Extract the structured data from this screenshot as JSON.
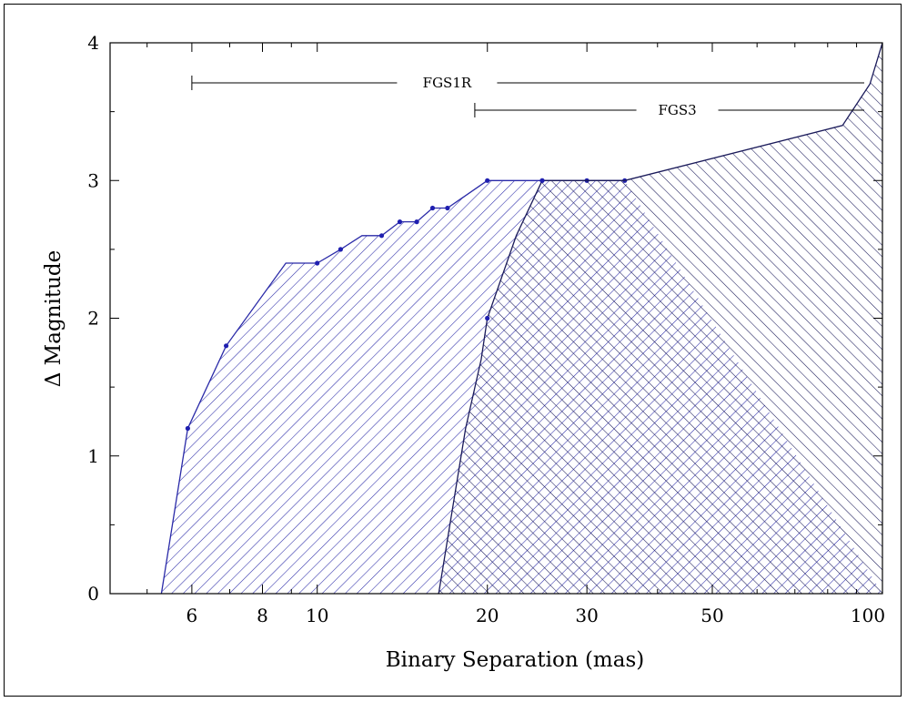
{
  "chart_data": {
    "type": "area",
    "xlabel": "Binary Separation (mas)",
    "ylabel": "Δ Magnitude",
    "xscale": "log",
    "xlim": [
      4.3,
      100
    ],
    "ylim": [
      0,
      4
    ],
    "xticks": [
      {
        "value": 6,
        "label": "6"
      },
      {
        "value": 8,
        "label": "8"
      },
      {
        "value": 10,
        "label": "10"
      },
      {
        "value": 20,
        "label": "20"
      },
      {
        "value": 30,
        "label": "30"
      },
      {
        "value": 50,
        "label": "50"
      },
      {
        "value": 100,
        "label": "100"
      }
    ],
    "yticks": [
      {
        "value": 0,
        "label": "0"
      },
      {
        "value": 1,
        "label": "1"
      },
      {
        "value": 2,
        "label": "2"
      },
      {
        "value": 3,
        "label": "3"
      },
      {
        "value": 4,
        "label": "4"
      }
    ],
    "grid": false,
    "series": [
      {
        "name": "FGS1R",
        "fill": "hatch-single",
        "color": "#2a2aa8",
        "curve": [
          {
            "x": 5.3,
            "y": 0
          },
          {
            "x": 5.9,
            "y": 1.2
          },
          {
            "x": 6.9,
            "y": 1.8
          },
          {
            "x": 8.8,
            "y": 2.4
          },
          {
            "x": 10,
            "y": 2.4
          },
          {
            "x": 11,
            "y": 2.5
          },
          {
            "x": 12,
            "y": 2.6
          },
          {
            "x": 13,
            "y": 2.6
          },
          {
            "x": 14,
            "y": 2.7
          },
          {
            "x": 15,
            "y": 2.7
          },
          {
            "x": 16,
            "y": 2.8
          },
          {
            "x": 17,
            "y": 2.8
          },
          {
            "x": 20,
            "y": 3.0
          },
          {
            "x": 25,
            "y": 3.0
          },
          {
            "x": 30,
            "y": 3.0
          },
          {
            "x": 35,
            "y": 3.0
          }
        ],
        "markers": [
          {
            "x": 5.9,
            "y": 1.2
          },
          {
            "x": 6.9,
            "y": 1.8
          },
          {
            "x": 10,
            "y": 2.4
          },
          {
            "x": 11,
            "y": 2.5
          },
          {
            "x": 13,
            "y": 2.6
          },
          {
            "x": 14,
            "y": 2.7
          },
          {
            "x": 15,
            "y": 2.7
          },
          {
            "x": 16,
            "y": 2.8
          },
          {
            "x": 17,
            "y": 2.8
          },
          {
            "x": 20,
            "y": 3.0
          },
          {
            "x": 25,
            "y": 3.0
          },
          {
            "x": 30,
            "y": 3.0
          },
          {
            "x": 35,
            "y": 3.0
          }
        ]
      },
      {
        "name": "FGS3",
        "fill": "hatch-cross",
        "color": "#1a1a5a",
        "curve": [
          {
            "x": 16.4,
            "y": 0
          },
          {
            "x": 18.3,
            "y": 1.2
          },
          {
            "x": 19.5,
            "y": 1.7
          },
          {
            "x": 20.0,
            "y": 2.0
          },
          {
            "x": 22.5,
            "y": 2.6
          },
          {
            "x": 25,
            "y": 3.0
          },
          {
            "x": 30,
            "y": 3.0
          },
          {
            "x": 35,
            "y": 3.0
          },
          {
            "x": 85,
            "y": 3.4
          },
          {
            "x": 95,
            "y": 3.7
          },
          {
            "x": 100,
            "y": 4.0
          }
        ],
        "markers": [
          {
            "x": 20.0,
            "y": 2.0
          },
          {
            "x": 25,
            "y": 3.0
          }
        ]
      }
    ],
    "annotations": [
      {
        "label": "FGS1R",
        "range": [
          6,
          100
        ],
        "y": 3.75
      },
      {
        "label": "FGS3",
        "range": [
          19,
          100
        ],
        "y": 3.55
      }
    ]
  }
}
